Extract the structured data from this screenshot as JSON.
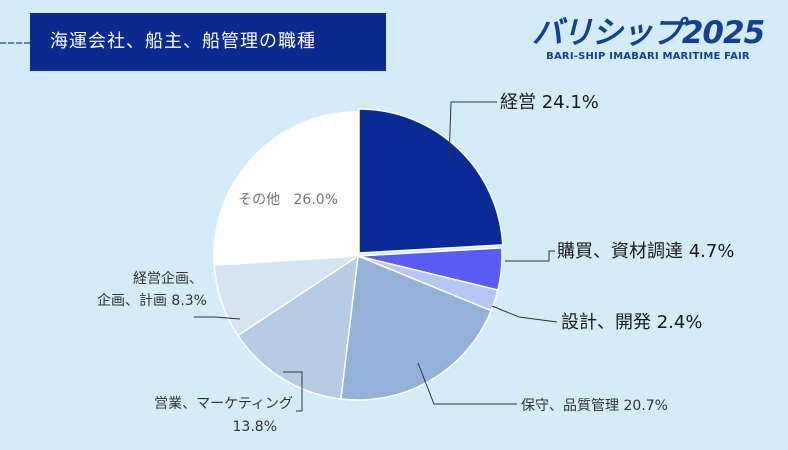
{
  "header": {
    "title": "海運会社、船主、船管理の職種",
    "logo_main": "バリシップ2025",
    "logo_sub": "BARI-SHIP IMABARI MARITIME FAIR"
  },
  "colors": {
    "header_bg": "#0a2a8f",
    "page_bg": "#d4ecf8",
    "logo": "#123f98"
  },
  "chart_data": {
    "type": "pie",
    "title": "海運会社、船主、船管理の職種",
    "start": "12 o'clock",
    "direction": "clockwise",
    "slices": [
      {
        "label": "経営",
        "value": 24.1,
        "pct": "24.1%",
        "color": "#0a2a96"
      },
      {
        "label": "購買、資材調達",
        "value": 4.7,
        "pct": "4.7%",
        "color": "#5a5cf6"
      },
      {
        "label": "設計、開発",
        "value": 2.4,
        "pct": "2.4%",
        "color": "#b7c6f4"
      },
      {
        "label": "保守、品質管理",
        "value": 20.7,
        "pct": "20.7%",
        "color": "#94b2d8"
      },
      {
        "label": "営業、マーケティング",
        "value": 13.8,
        "pct": "13.8%",
        "color": "#b6cbe4"
      },
      {
        "label": "経営企画、企画、計画",
        "value": 8.3,
        "pct": "8.3%",
        "color": "#d6e3f1"
      },
      {
        "label": "その他",
        "value": 26.0,
        "pct": "26.0%",
        "color": "#ffffff"
      }
    ],
    "label_lines": {
      "経営企画、企画、計画": [
        "経営企画、",
        "企画、計画"
      ],
      "営業、マーケティング": [
        "営業、マーケティング"
      ]
    }
  }
}
